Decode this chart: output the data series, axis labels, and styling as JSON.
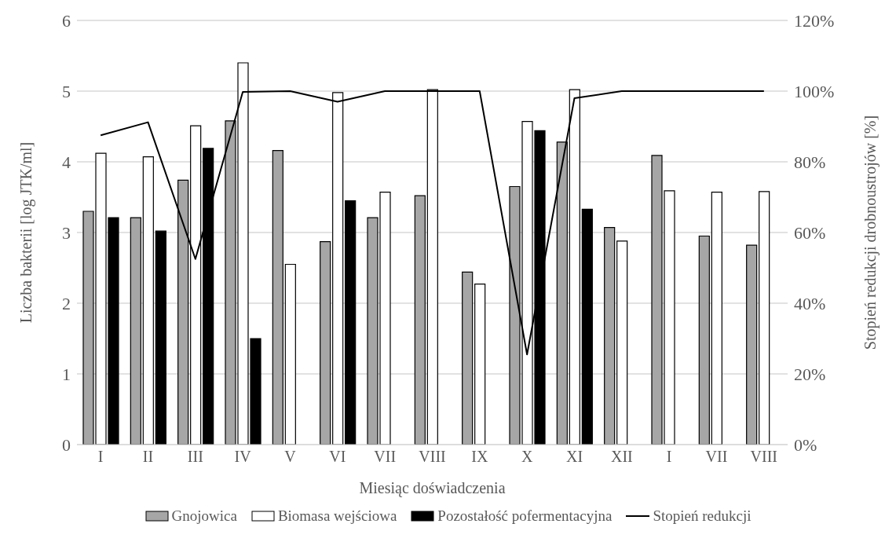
{
  "chart_data": {
    "type": "bar",
    "xlabel": "Miesiąc doświadczenia",
    "ylabel": "Liczba bakterii [log JTK/ml]",
    "y2label": "Stopień redukcji drobnoustrojów [%]",
    "categories": [
      "I",
      "II",
      "III",
      "IV",
      "V",
      "VI",
      "VII",
      "VIII",
      "IX",
      "X",
      "XI",
      "XII",
      "I",
      "VII",
      "VIII"
    ],
    "series": [
      {
        "name": "Gnojowica",
        "color": "#a6a6a6",
        "values": [
          3.3,
          3.21,
          3.74,
          4.58,
          4.16,
          2.87,
          3.21,
          3.52,
          2.44,
          3.65,
          4.28,
          3.07,
          4.09,
          2.95,
          2.82
        ]
      },
      {
        "name": "Biomasa wejściowa",
        "color": "#ffffff",
        "values": [
          4.12,
          4.07,
          4.51,
          5.4,
          2.55,
          4.98,
          3.57,
          5.02,
          2.27,
          4.57,
          5.02,
          2.88,
          3.59,
          3.57,
          3.58
        ]
      },
      {
        "name": "Pozostałość pofermentacyjna",
        "color": "#000000",
        "values": [
          3.21,
          3.02,
          4.19,
          1.5,
          null,
          3.45,
          null,
          null,
          null,
          4.44,
          3.33,
          null,
          null,
          null,
          null
        ]
      },
      {
        "name": "Stopień redukcji",
        "type": "line",
        "axis": "y2",
        "color": "#000000",
        "values": [
          87.5,
          91.2,
          52.5,
          99.8,
          100,
          97,
          100,
          100,
          100,
          25.5,
          98,
          100,
          100,
          100,
          100
        ]
      }
    ],
    "ylim": [
      0,
      6
    ],
    "yticks": [
      0,
      1,
      2,
      3,
      4,
      5,
      6
    ],
    "y2lim": [
      0,
      120
    ],
    "y2ticks": [
      {
        "value": 0,
        "label": "0%"
      },
      {
        "value": 20,
        "label": "20%"
      },
      {
        "value": 40,
        "label": "40%"
      },
      {
        "value": 60,
        "label": "60%"
      },
      {
        "value": 80,
        "label": "80%"
      },
      {
        "value": 100,
        "label": "100%"
      },
      {
        "value": 120,
        "label": "120%"
      }
    ],
    "grid": "y",
    "legend": "bottom",
    "marker": "none",
    "line_style": "solid"
  }
}
